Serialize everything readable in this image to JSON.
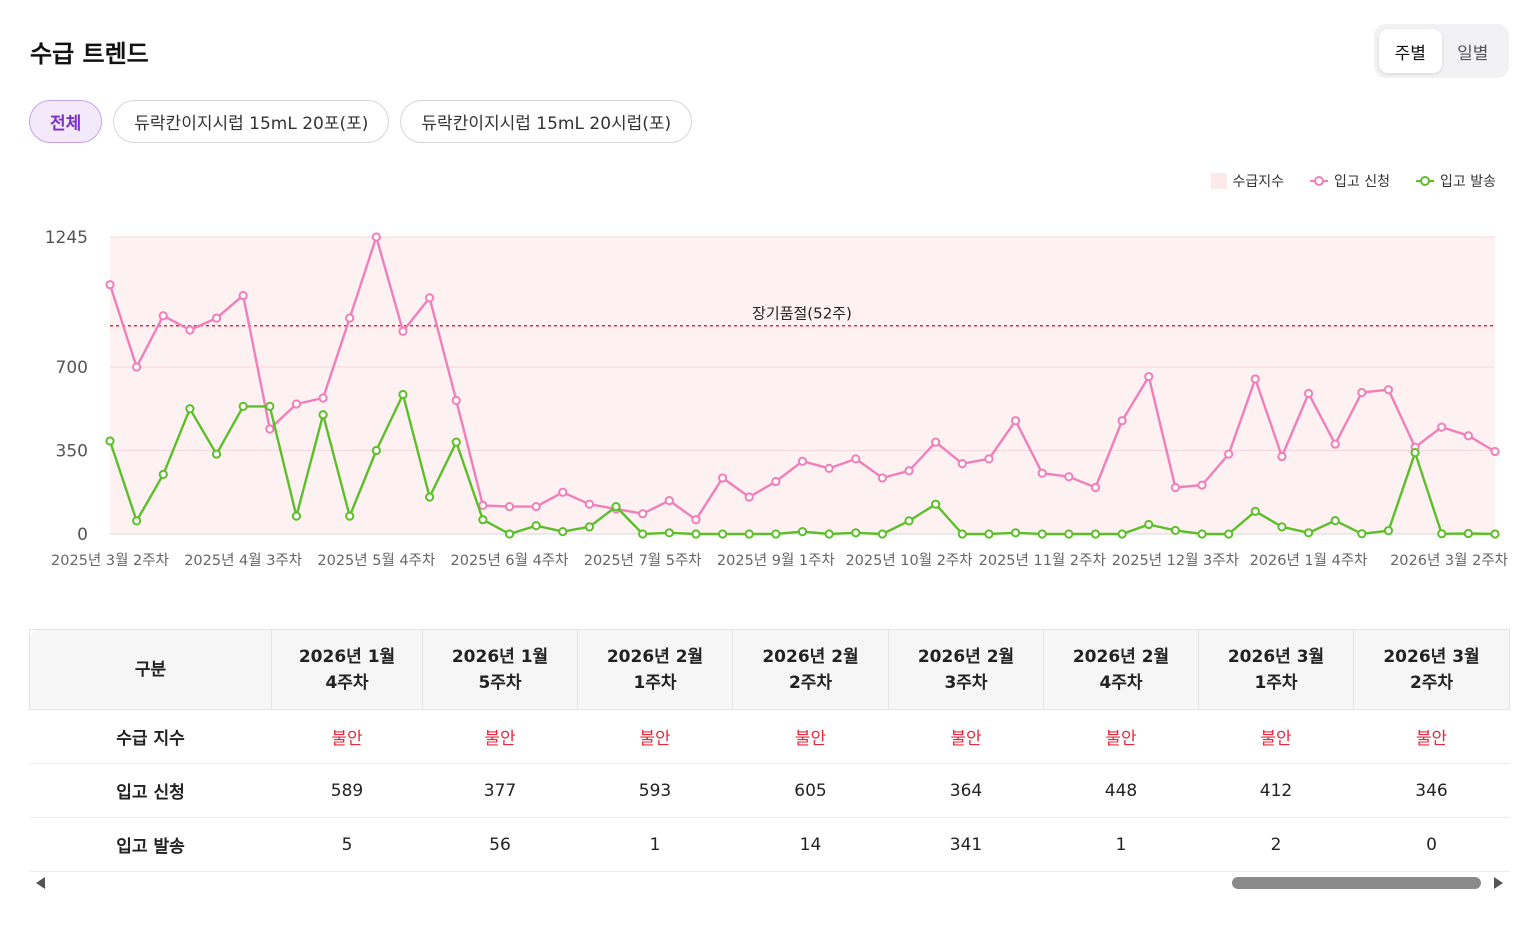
{
  "header": {
    "title": "수급 트렌드"
  },
  "view_toggle": {
    "weekly": "주별",
    "daily": "일별"
  },
  "filters": [
    "전체",
    "듀락칸이지시럽 15mL 20포(포)",
    "듀락칸이지시럽 15mL 20시럽(포)"
  ],
  "legend": {
    "index": "수급지수",
    "request": "입고 신청",
    "shipment": "입고 발송"
  },
  "colors": {
    "request": "#f07fba",
    "shipment": "#5cbf2a",
    "band": "#fef1f2",
    "threshold": "#e8293d",
    "warn": "#e8293d"
  },
  "chart_data": {
    "type": "line",
    "y_ticks": [
      "0",
      "350",
      "700",
      "1245"
    ],
    "ylim": [
      0,
      1245
    ],
    "x_labels": [
      "2025년 3월 2주차",
      "2025년 4월 3주차",
      "2025년 5월 4주차",
      "2025년 6월 4주차",
      "2025년 7월 5주차",
      "2025년 9월 1주차",
      "2025년 10월 2주차",
      "2025년 11월 2주차",
      "2025년 12월 3주차",
      "2026년 1월 4주차",
      "2026년 3월 2주차"
    ],
    "threshold": {
      "label": "장기품절(52주)",
      "value": 873
    },
    "series": [
      {
        "name": "입고 신청",
        "values": [
          1045,
          700,
          915,
          855,
          905,
          1000,
          440,
          545,
          570,
          905,
          1245,
          850,
          990,
          560,
          120,
          115,
          115,
          175,
          125,
          105,
          85,
          140,
          60,
          235,
          155,
          220,
          305,
          275,
          315,
          235,
          265,
          385,
          295,
          315,
          475,
          255,
          240,
          195,
          475,
          660,
          195,
          205,
          335,
          650,
          325,
          589,
          377,
          593,
          605,
          364,
          448,
          412,
          346
        ]
      },
      {
        "name": "입고 발송",
        "values": [
          390,
          55,
          250,
          525,
          335,
          535,
          535,
          75,
          500,
          75,
          350,
          585,
          155,
          385,
          60,
          0,
          35,
          10,
          30,
          115,
          0,
          5,
          0,
          0,
          0,
          0,
          10,
          0,
          5,
          0,
          55,
          125,
          0,
          0,
          5,
          0,
          0,
          0,
          0,
          40,
          15,
          0,
          0,
          95,
          30,
          5,
          56,
          1,
          14,
          341,
          1,
          2,
          0
        ]
      }
    ]
  },
  "table": {
    "corner": "구분",
    "columns": [
      [
        "2026년 1월",
        "4주차"
      ],
      [
        "2026년 1월",
        "5주차"
      ],
      [
        "2026년 2월",
        "1주차"
      ],
      [
        "2026년 2월",
        "2주차"
      ],
      [
        "2026년 2월",
        "3주차"
      ],
      [
        "2026년 2월",
        "4주차"
      ],
      [
        "2026년 3월",
        "1주차"
      ],
      [
        "2026년 3월",
        "2주차"
      ]
    ],
    "rows": [
      {
        "label": "수급 지수",
        "values": [
          "불안",
          "불안",
          "불안",
          "불안",
          "불안",
          "불안",
          "불안",
          "불안"
        ],
        "warn": true
      },
      {
        "label": "입고 신청",
        "values": [
          "589",
          "377",
          "593",
          "605",
          "364",
          "448",
          "412",
          "346"
        ]
      },
      {
        "label": "입고 발송",
        "values": [
          "5",
          "56",
          "1",
          "14",
          "341",
          "1",
          "2",
          "0"
        ]
      }
    ]
  }
}
